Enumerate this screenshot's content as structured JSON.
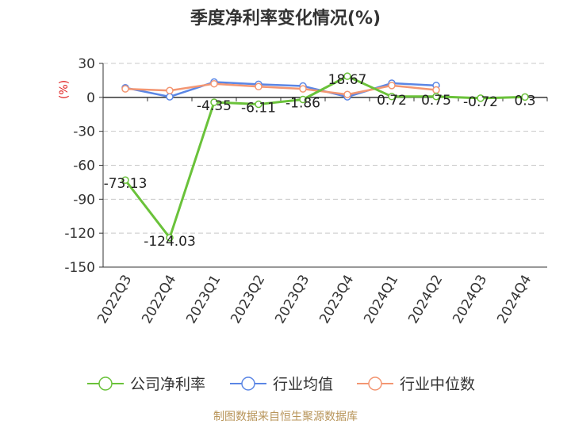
{
  "chart_data": {
    "type": "line",
    "title": "季度净利率变化情况(%)",
    "ylabel": "(%)",
    "categories": [
      "2022Q3",
      "2022Q4",
      "2023Q1",
      "2023Q2",
      "2023Q3",
      "2023Q4",
      "2024Q1",
      "2024Q2",
      "2024Q3",
      "2024Q4"
    ],
    "ylim": [
      -150,
      30
    ],
    "yticks": [
      30,
      0,
      -30,
      -60,
      -90,
      -120,
      -150
    ],
    "grid": true,
    "legend_position": "bottom",
    "series": [
      {
        "name": "公司净利率",
        "color": "#6ac23a",
        "values": [
          -73.13,
          -124.03,
          -4.35,
          -6.11,
          -1.86,
          18.67,
          0.72,
          0.75,
          -0.72,
          0.3
        ],
        "labels": [
          "-73.13",
          "-124.03",
          "-4.35",
          "-6.11",
          "-1.86",
          "18.67",
          "0.72",
          "0.75",
          "-0.72",
          "0.3"
        ]
      },
      {
        "name": "行业均值",
        "color": "#5b86e5",
        "values": [
          8.5,
          0.5,
          13.5,
          11.5,
          10.0,
          0.5,
          12.5,
          10.5,
          null,
          null
        ]
      },
      {
        "name": "行业中位数",
        "color": "#f39672",
        "values": [
          7.5,
          6.0,
          12.0,
          9.5,
          7.5,
          2.5,
          10.5,
          6.5,
          null,
          null
        ]
      }
    ]
  },
  "source_text": "制图数据来自恒生聚源数据库"
}
